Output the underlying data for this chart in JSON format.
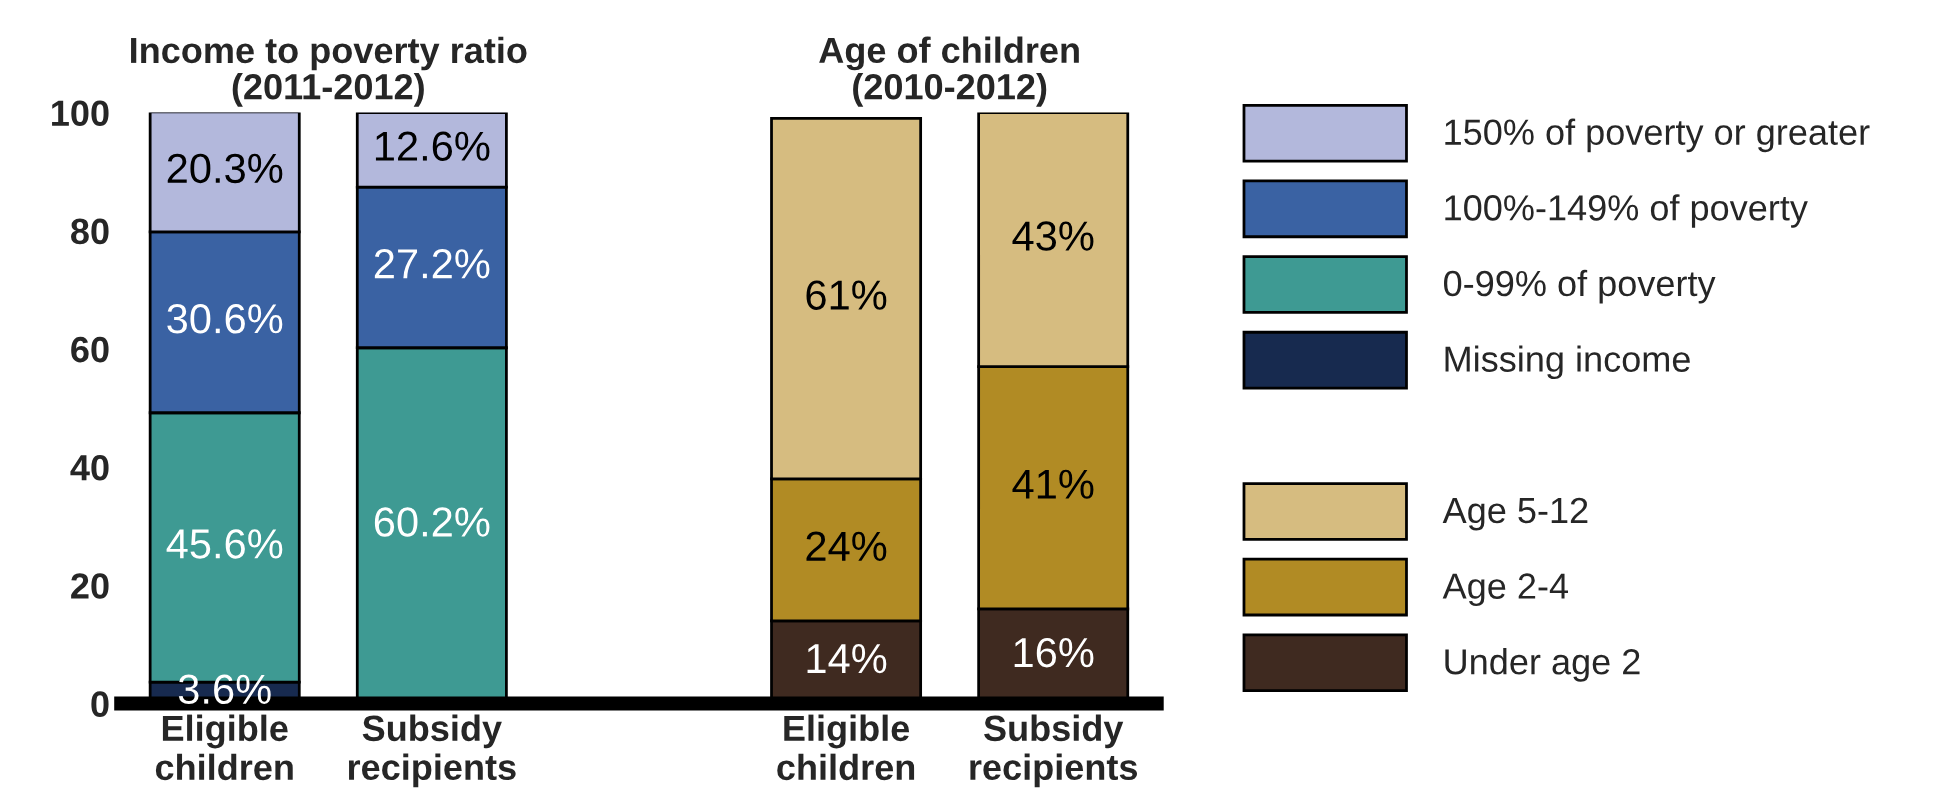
{
  "chart_data": {
    "type": "bar",
    "stacked": true,
    "annotations": [
      "Income to poverty ratio\n(2011-2012)",
      "Age of children\n(2010-2012)"
    ],
    "categories": [
      "Eligible\nchildren",
      "Subsidy\nrecipients",
      null,
      "Eligible\nchildren",
      "Subsidy\nrecipients"
    ],
    "series": [
      {
        "name": "Missing income",
        "color": "#172a4f",
        "values": [
          3.6,
          null,
          null,
          null,
          null
        ],
        "value_labels": [
          "3.6%",
          null,
          null,
          null,
          null
        ]
      },
      {
        "name": "0-99% of poverty",
        "color": "#3e9a93",
        "values": [
          45.6,
          60.2,
          null,
          null,
          null
        ],
        "value_labels": [
          "45.6%",
          "60.2%",
          null,
          null,
          null
        ]
      },
      {
        "name": "100%-149% of poverty",
        "color": "#3a62a3",
        "values": [
          30.6,
          27.2,
          null,
          null,
          null
        ],
        "value_labels": [
          "30.6%",
          "27.2%",
          null,
          null,
          null
        ]
      },
      {
        "name": "150% of poverty or greater",
        "color": "#b3b8dc",
        "values": [
          20.3,
          12.6,
          null,
          null,
          null
        ],
        "value_labels": [
          "20.3%",
          "12.6%",
          null,
          null,
          null
        ]
      },
      {
        "name": "Under age 2",
        "color": "#3f2a20",
        "values": [
          null,
          null,
          null,
          14,
          16
        ],
        "value_labels": [
          null,
          null,
          null,
          "14%",
          "16%"
        ]
      },
      {
        "name": "Age 2-4",
        "color": "#b18b24",
        "values": [
          null,
          null,
          null,
          24,
          41
        ],
        "value_labels": [
          null,
          null,
          null,
          "24%",
          "41%"
        ]
      },
      {
        "name": "Age 5-12",
        "color": "#d6bc80",
        "values": [
          null,
          null,
          null,
          61,
          43
        ],
        "value_labels": [
          null,
          null,
          null,
          "61%",
          "43%"
        ]
      }
    ],
    "ylim": [
      0,
      100
    ],
    "yticks": [
      0,
      20,
      40,
      60,
      80,
      100
    ],
    "grid": false,
    "legend": "right"
  }
}
